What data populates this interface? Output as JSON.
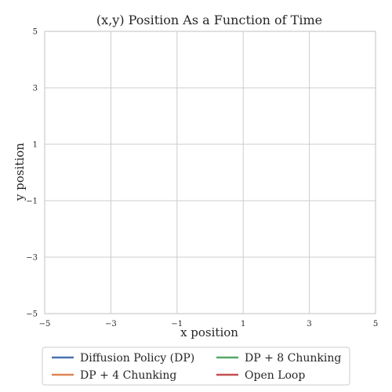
{
  "chart_data": {
    "type": "line",
    "title": "(x,y) Position As a Function of Time",
    "xlabel": "x position",
    "ylabel": "y position",
    "xlim": [
      -5,
      5
    ],
    "ylim": [
      -5,
      5
    ],
    "xticks": [
      -5,
      -3,
      -1,
      1,
      3,
      5
    ],
    "yticks": [
      -5,
      -3,
      -1,
      1,
      3,
      5
    ],
    "xtick_labels": [
      "−5",
      "−3",
      "−1",
      "1",
      "3",
      "5"
    ],
    "ytick_labels": [
      "−5",
      "−3",
      "−1",
      "1",
      "3",
      "5"
    ],
    "grid": true,
    "legend_position": "below",
    "series": [
      {
        "name": "Diffusion Policy (DP)",
        "color": "#4c72b0",
        "x": [],
        "y": []
      },
      {
        "name": "DP + 4 Chunking",
        "color": "#dd8452",
        "x": [],
        "y": []
      },
      {
        "name": "DP + 8 Chunking",
        "color": "#55a868",
        "x": [],
        "y": []
      },
      {
        "name": "Open Loop",
        "color": "#c44e52",
        "x": [],
        "y": []
      }
    ]
  }
}
